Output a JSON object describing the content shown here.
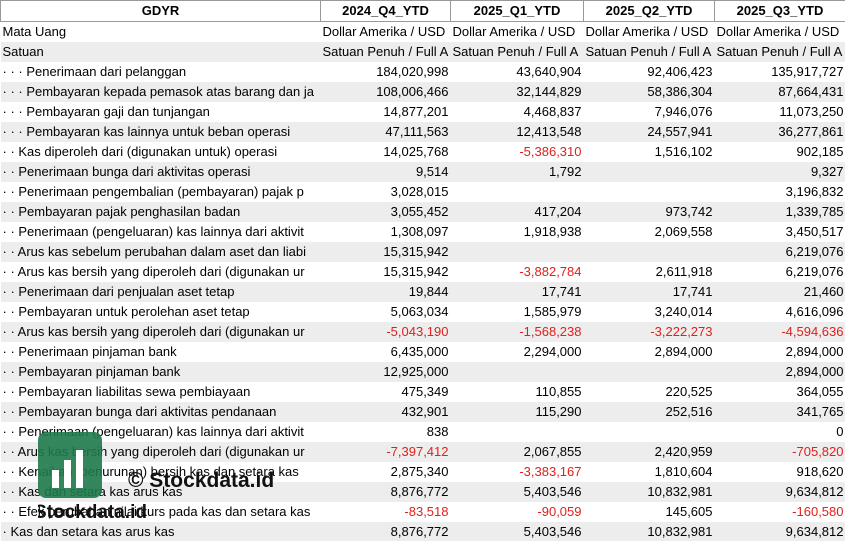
{
  "table": {
    "header": [
      "GDYR",
      "2024_Q4_YTD",
      "2025_Q1_YTD",
      "2025_Q2_YTD",
      "2025_Q3_YTD"
    ],
    "rows": [
      [
        "Mata Uang",
        "Dollar Amerika / USD",
        "Dollar Amerika / USD",
        "Dollar Amerika / USD",
        "Dollar Amerika / USD"
      ],
      [
        "Satuan",
        "Satuan Penuh / Full A",
        "Satuan Penuh / Full A",
        "Satuan Penuh / Full A",
        "Satuan Penuh / Full A"
      ],
      [
        "· · · Penerimaan dari pelanggan",
        "184,020,998",
        "43,640,904",
        "92,406,423",
        "135,917,727"
      ],
      [
        "· · · Pembayaran kepada pemasok atas barang dan ja",
        "108,006,466",
        "32,144,829",
        "58,386,304",
        "87,664,431"
      ],
      [
        "· · · Pembayaran gaji dan tunjangan",
        "14,877,201",
        "4,468,837",
        "7,946,076",
        "11,073,250"
      ],
      [
        "· · · Pembayaran kas lainnya untuk beban operasi",
        "47,111,563",
        "12,413,548",
        "24,557,941",
        "36,277,861"
      ],
      [
        "· · Kas diperoleh dari (digunakan untuk) operasi",
        "14,025,768",
        "-5,386,310",
        "1,516,102",
        "902,185"
      ],
      [
        "· · Penerimaan bunga dari aktivitas operasi",
        "9,514",
        "1,792",
        null,
        "9,327"
      ],
      [
        "· · Penerimaan pengembalian (pembayaran) pajak p",
        "3,028,015",
        null,
        null,
        "3,196,832"
      ],
      [
        "· · Pembayaran pajak penghasilan badan",
        "3,055,452",
        "417,204",
        "973,742",
        "1,339,785"
      ],
      [
        "· · Penerimaan (pengeluaran) kas lainnya dari aktivit",
        "1,308,097",
        "1,918,938",
        "2,069,558",
        "3,450,517"
      ],
      [
        "· · Arus kas sebelum perubahan dalam aset dan liabi",
        "15,315,942",
        null,
        null,
        "6,219,076"
      ],
      [
        "· · Arus kas bersih yang diperoleh dari (digunakan ur",
        "15,315,942",
        "-3,882,784",
        "2,611,918",
        "6,219,076"
      ],
      [
        "· · Penerimaan dari penjualan aset tetap",
        "19,844",
        "17,741",
        "17,741",
        "21,460"
      ],
      [
        "· · Pembayaran untuk perolehan aset tetap",
        "5,063,034",
        "1,585,979",
        "3,240,014",
        "4,616,096"
      ],
      [
        "· · Arus kas bersih yang diperoleh dari (digunakan ur",
        "-5,043,190",
        "-1,568,238",
        "-3,222,273",
        "-4,594,636"
      ],
      [
        "· · Penerimaan pinjaman bank",
        "6,435,000",
        "2,294,000",
        "2,894,000",
        "2,894,000"
      ],
      [
        "· · Pembayaran pinjaman bank",
        "12,925,000",
        null,
        null,
        "2,894,000"
      ],
      [
        "· · Pembayaran liabilitas sewa pembiayaan",
        "475,349",
        "110,855",
        "220,525",
        "364,055"
      ],
      [
        "· · Pembayaran bunga dari aktivitas pendanaan",
        "432,901",
        "115,290",
        "252,516",
        "341,765"
      ],
      [
        "· · Penerimaan (pengeluaran) kas lainnya dari aktivit",
        "838",
        null,
        null,
        "0"
      ],
      [
        "· · Arus kas bersih yang diperoleh dari (digunakan ur",
        "-7,397,412",
        "2,067,855",
        "2,420,959",
        "-705,820"
      ],
      [
        "· · Kenaikan (penurunan) bersih kas dan setara kas",
        "2,875,340",
        "-3,383,167",
        "1,810,604",
        "918,620"
      ],
      [
        "· · Kas dan setara kas arus kas",
        "8,876,772",
        "5,403,546",
        "10,832,981",
        "9,634,812"
      ],
      [
        "· · Efek perubahan nilai kurs pada kas dan setara kas",
        "-83,518",
        "-90,059",
        "145,605",
        "-160,580"
      ],
      [
        "· Kas dan setara kas arus kas",
        "8,876,772",
        "5,403,546",
        "10,832,981",
        "9,634,812"
      ]
    ]
  },
  "watermark": {
    "copyright": "© Stockdata.id",
    "brand": "Stockdata.id"
  }
}
